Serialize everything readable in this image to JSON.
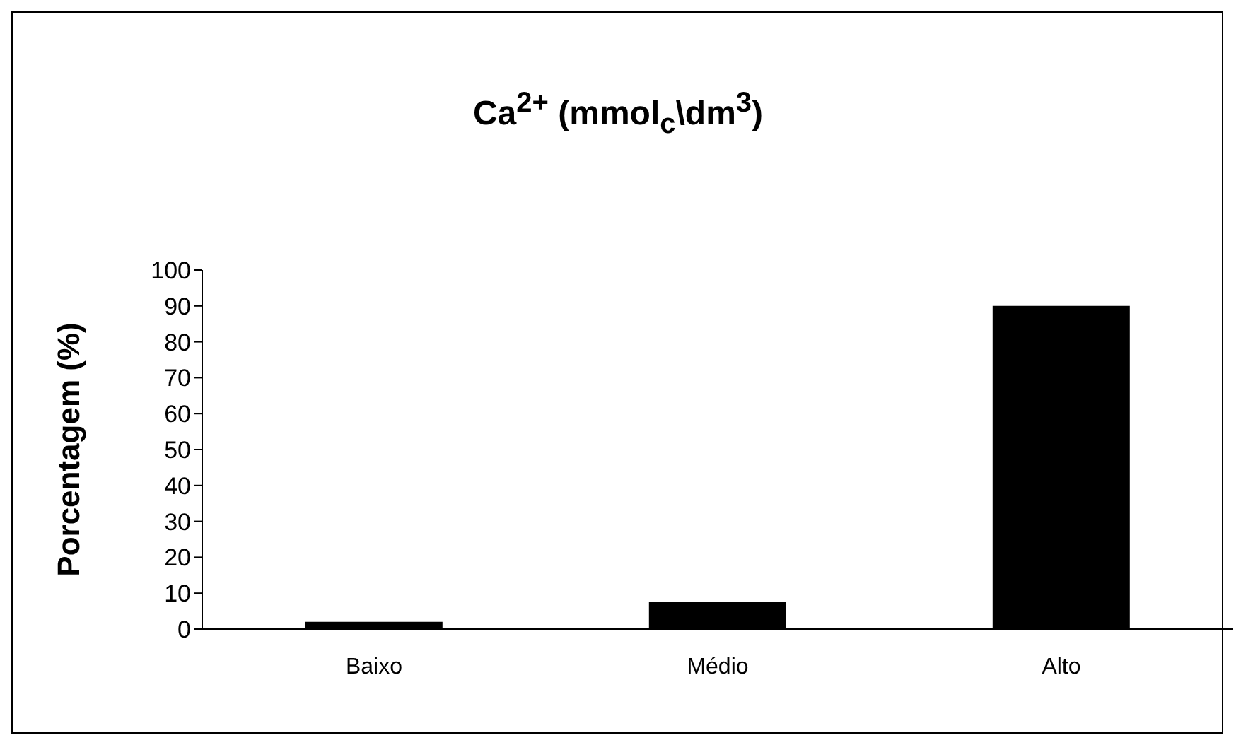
{
  "chart_data": {
    "type": "bar",
    "title": "Ca$^{2+}$ (mmol$_{c}$\\dm$^{3}$)",
    "ylabel": "Porcentagem (%)",
    "categories": [
      "Baixo",
      "Médio",
      "Alto"
    ],
    "values": [
      2,
      7.7,
      90
    ],
    "color": "#000000",
    "ylim": [
      0,
      100
    ],
    "yticks": [
      0,
      10,
      20,
      30,
      40,
      50,
      60,
      70,
      80,
      90,
      100
    ],
    "grid": false,
    "legend": false
  }
}
